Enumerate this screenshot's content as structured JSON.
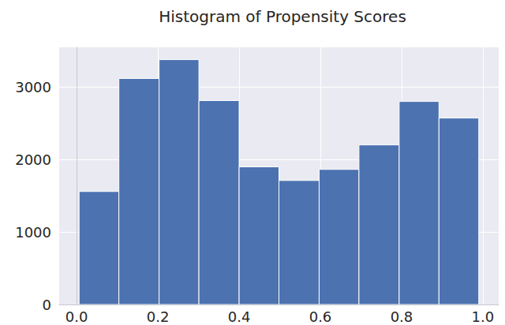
{
  "chart_data": {
    "type": "histogram",
    "title": "Histogram of Propensity Scores",
    "bins": [
      0.006,
      0.104,
      0.203,
      0.301,
      0.4,
      0.498,
      0.597,
      0.695,
      0.794,
      0.892,
      0.99
    ],
    "values": [
      1560,
      3120,
      3380,
      2815,
      1900,
      1712,
      1865,
      2203,
      2803,
      2574
    ],
    "color": "#4c72b0",
    "xlim": [
      -0.043,
      1.039
    ],
    "xticks": [
      {
        "value": 0,
        "label": "0.0"
      },
      {
        "value": 0.2,
        "label": "0.2"
      },
      {
        "value": 0.4,
        "label": "0.4"
      },
      {
        "value": 0.6,
        "label": "0.6"
      },
      {
        "value": 0.8,
        "label": "0.8"
      },
      {
        "value": 1,
        "label": "1.0"
      }
    ],
    "ylim": [
      0,
      3550
    ],
    "yticks": [
      0,
      1000,
      2000,
      3000
    ],
    "grid": true
  }
}
